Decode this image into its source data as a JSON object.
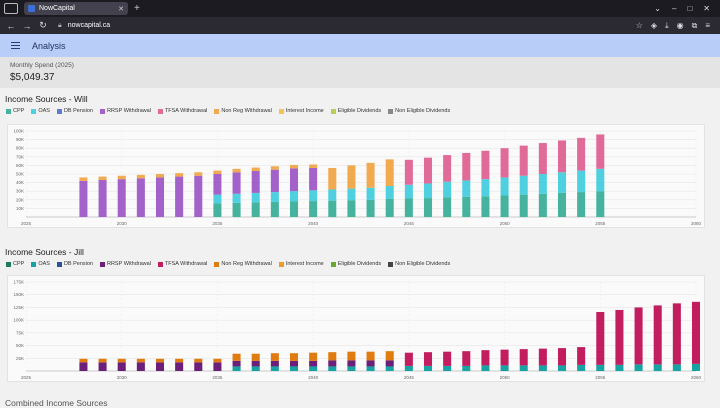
{
  "browser": {
    "tab_title": "NowCapital",
    "url": "nowcapital.ca"
  },
  "app": {
    "title": "Analysis"
  },
  "spend": {
    "label": "Monthly Spend (2025)",
    "value": "$5,049.37"
  },
  "sections": {
    "next_title": "Combined Income Sources"
  },
  "colors": {
    "will": {
      "CPP": "#45b39d",
      "OAS": "#4fd0e0",
      "DB Pension": "#5b7bd5",
      "RRSP Withdrawal": "#a262c9",
      "TFSA Withdrawal": "#e06b98",
      "Non Reg Withdrawal": "#f2aa50",
      "Interest Income": "#f2c357",
      "Eligible Dividends": "#b6cf5a",
      "Non Eligible Dividends": "#888888"
    },
    "jill": {
      "CPP": "#1e7a60",
      "OAS": "#17a3a3",
      "DB Pension": "#2c4f9e",
      "RRSP Withdrawal": "#6b1f78",
      "TFSA Withdrawal": "#c21d5e",
      "Non Reg Withdrawal": "#e07b10",
      "Interest Income": "#eb9c2a",
      "Eligible Dividends": "#6aa832",
      "Non Eligible Dividends": "#444444"
    }
  },
  "chart_data": [
    {
      "type": "bar",
      "stacked": true,
      "title": "Income Sources - Will",
      "legend": [
        "CPP",
        "OAS",
        "DB Pension",
        "RRSP Withdrawal",
        "TFSA Withdrawal",
        "Non Reg Withdrawal",
        "Interest Income",
        "Eligible Dividends",
        "Non Eligible Dividends"
      ],
      "xlim": [
        2025,
        2060
      ],
      "ylim": [
        0,
        100000
      ],
      "x_ticks": [
        "2025",
        "2030",
        "2035",
        "2040",
        "2045",
        "2050",
        "2055",
        "2060"
      ],
      "y_ticks": [
        "10K",
        "20K",
        "30K",
        "40K",
        "50K",
        "60K",
        "70K",
        "80K",
        "90K",
        "100K"
      ],
      "categories": [
        2028,
        2029,
        2030,
        2031,
        2032,
        2033,
        2034,
        2035,
        2036,
        2037,
        2038,
        2039,
        2040,
        2041,
        2042,
        2043,
        2044,
        2045,
        2046,
        2047,
        2048,
        2049,
        2050,
        2051,
        2052,
        2053,
        2054,
        2055
      ],
      "series": [
        {
          "name": "CPP",
          "values": [
            0,
            0,
            0,
            0,
            0,
            0,
            0,
            16000,
            16500,
            17000,
            17500,
            18000,
            18500,
            19000,
            19500,
            20000,
            21000,
            21500,
            22000,
            23000,
            23500,
            24000,
            25000,
            26000,
            27000,
            28000,
            29000,
            30000
          ]
        },
        {
          "name": "OAS",
          "values": [
            0,
            0,
            0,
            0,
            0,
            0,
            0,
            10000,
            10500,
            11000,
            11500,
            12000,
            12500,
            13000,
            13500,
            14000,
            15000,
            16000,
            17000,
            18000,
            19000,
            20000,
            21000,
            22000,
            23000,
            24000,
            25000,
            26000
          ]
        },
        {
          "name": "RRSP Withdrawal",
          "values": [
            42000,
            43000,
            44000,
            45000,
            46000,
            47000,
            48000,
            24000,
            25000,
            25500,
            26000,
            26500,
            26000,
            0,
            0,
            0,
            0,
            0,
            0,
            0,
            0,
            0,
            0,
            0,
            0,
            0,
            0,
            0
          ]
        },
        {
          "name": "TFSA Withdrawal",
          "values": [
            0,
            0,
            0,
            0,
            0,
            0,
            0,
            0,
            0,
            0,
            0,
            0,
            0,
            0,
            0,
            0,
            0,
            29000,
            30000,
            31000,
            32000,
            33000,
            34000,
            35000,
            36000,
            37000,
            38000,
            40000
          ]
        },
        {
          "name": "Non Reg Withdrawal",
          "values": [
            4000,
            4000,
            4000,
            4000,
            4000,
            4000,
            4000,
            4000,
            4000,
            4000,
            4000,
            4000,
            4000,
            25000,
            27000,
            29000,
            31000,
            0,
            0,
            0,
            0,
            0,
            0,
            0,
            0,
            0,
            0,
            0
          ]
        },
        {
          "name": "Interest Income",
          "values": [
            0,
            0,
            0,
            0,
            0,
            0,
            0,
            0,
            0,
            0,
            0,
            0,
            0,
            0,
            0,
            0,
            0,
            0,
            0,
            0,
            0,
            0,
            0,
            0,
            0,
            0,
            0,
            0
          ]
        }
      ]
    },
    {
      "type": "bar",
      "stacked": true,
      "title": "Income Sources - Jill",
      "legend": [
        "CPP",
        "OAS",
        "DB Pension",
        "RRSP Withdrawal",
        "TFSA Withdrawal",
        "Non Reg Withdrawal",
        "Interest Income",
        "Eligible Dividends",
        "Non Eligible Dividends"
      ],
      "xlim": [
        2025,
        2060
      ],
      "ylim": [
        0,
        175000
      ],
      "x_ticks": [
        "2025",
        "2030",
        "2035",
        "2040",
        "2045",
        "2050",
        "2055",
        "2060"
      ],
      "y_ticks": [
        "25K",
        "50K",
        "75K",
        "100K",
        "125K",
        "150K",
        "175K"
      ],
      "categories": [
        2028,
        2029,
        2030,
        2031,
        2032,
        2033,
        2034,
        2035,
        2036,
        2037,
        2038,
        2039,
        2040,
        2041,
        2042,
        2043,
        2044,
        2045,
        2046,
        2047,
        2048,
        2049,
        2050,
        2051,
        2052,
        2053,
        2054,
        2055,
        2056,
        2057,
        2058,
        2059,
        2060
      ],
      "series": [
        {
          "name": "CPP",
          "values": [
            0,
            0,
            0,
            0,
            0,
            0,
            0,
            0,
            0,
            0,
            0,
            0,
            0,
            0,
            0,
            0,
            0,
            0,
            0,
            0,
            0,
            0,
            0,
            0,
            0,
            0,
            0,
            0,
            0,
            0,
            0,
            0,
            0
          ]
        },
        {
          "name": "OAS",
          "values": [
            0,
            0,
            0,
            0,
            0,
            0,
            0,
            0,
            9000,
            9000,
            9000,
            9000,
            9000,
            9000,
            9000,
            9000,
            9000,
            10000,
            10000,
            10000,
            10000,
            11000,
            11000,
            11000,
            11000,
            11000,
            12000,
            12000,
            12000,
            13000,
            13000,
            13000,
            14000
          ]
        },
        {
          "name": "CPP",
          "values": [
            0,
            0,
            0,
            0,
            0,
            0,
            0,
            0,
            0,
            0,
            0,
            0,
            0,
            0,
            0,
            0,
            0,
            0,
            0,
            0,
            0,
            0,
            0,
            0,
            0,
            0,
            0,
            0,
            0,
            0,
            0,
            0,
            0
          ]
        },
        {
          "name": "RRSP Withdrawal",
          "values": [
            17000,
            17000,
            17000,
            17000,
            17000,
            17000,
            17000,
            17000,
            11000,
            11000,
            11000,
            11000,
            11000,
            12000,
            12000,
            12000,
            12000,
            0,
            0,
            0,
            0,
            0,
            0,
            0,
            0,
            0,
            0,
            0,
            0,
            0,
            0,
            0,
            0
          ]
        },
        {
          "name": "TFSA Withdrawal",
          "values": [
            0,
            0,
            0,
            0,
            0,
            0,
            0,
            0,
            0,
            0,
            0,
            0,
            0,
            0,
            0,
            0,
            0,
            26000,
            27000,
            28000,
            29000,
            30000,
            31000,
            32000,
            33000,
            34000,
            35000,
            104000,
            108000,
            112000,
            116000,
            120000,
            122000
          ]
        },
        {
          "name": "Non Reg Withdrawal",
          "values": [
            7000,
            7000,
            7000,
            7000,
            7000,
            7000,
            7000,
            7000,
            14000,
            14000,
            15000,
            15000,
            16000,
            16000,
            17000,
            17000,
            18000,
            0,
            0,
            0,
            0,
            0,
            0,
            0,
            0,
            0,
            0,
            0,
            0,
            0,
            0,
            0,
            0
          ]
        },
        {
          "name": "Interest Income",
          "values": [
            0,
            0,
            0,
            0,
            0,
            0,
            0,
            0,
            0,
            0,
            0,
            0,
            0,
            0,
            0,
            0,
            0,
            0,
            0,
            0,
            0,
            0,
            0,
            0,
            0,
            0,
            0,
            0,
            0,
            0,
            0,
            0,
            0
          ]
        }
      ]
    }
  ]
}
